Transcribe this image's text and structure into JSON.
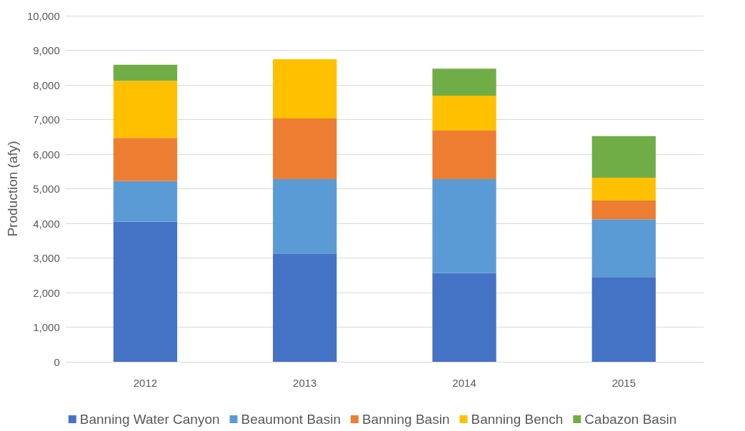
{
  "chart_data": {
    "type": "bar",
    "stacked": true,
    "ylabel": "Production (afy)",
    "categories": [
      "2012",
      "2013",
      "2014",
      "2015"
    ],
    "series": [
      {
        "name": "Banning Water Canyon",
        "color": "#4472c4",
        "values": [
          4050,
          3130,
          2560,
          2450
        ]
      },
      {
        "name": "Beaumont Basin",
        "color": "#5b9bd5",
        "values": [
          1170,
          2150,
          2720,
          1670
        ]
      },
      {
        "name": "Banning Basin",
        "color": "#ed7d31",
        "values": [
          1250,
          1750,
          1400,
          540
        ]
      },
      {
        "name": "Banning Bench",
        "color": "#ffc000",
        "values": [
          1650,
          1710,
          1010,
          660
        ]
      },
      {
        "name": "Cabazon Basin",
        "color": "#70ad47",
        "values": [
          460,
          0,
          780,
          1200
        ]
      }
    ],
    "ylim": [
      0,
      10000
    ],
    "yticks": [
      0,
      {
        "value": 1000,
        "label": "1,000"
      },
      {
        "value": 2000,
        "label": "2,000"
      },
      {
        "value": 3000,
        "label": "3,000"
      },
      {
        "value": 4000,
        "label": "4,000"
      },
      {
        "value": 5000,
        "label": "5,000"
      },
      {
        "value": 6000,
        "label": "6,000"
      },
      {
        "value": 7000,
        "label": "7,000"
      },
      {
        "value": 8000,
        "label": "8,000"
      },
      {
        "value": 9000,
        "label": "9,000"
      },
      {
        "value": 10000,
        "label": "10,000"
      }
    ],
    "grid": "y",
    "legend": "bottom"
  }
}
